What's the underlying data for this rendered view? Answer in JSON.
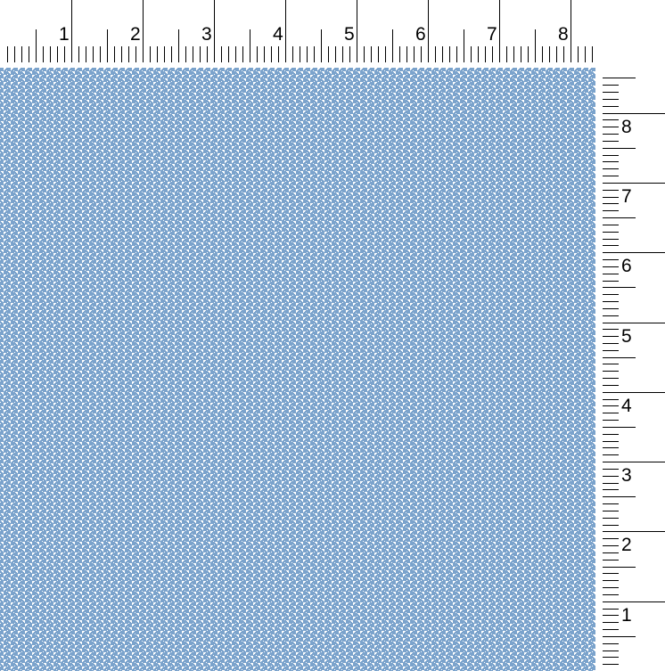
{
  "swatch": {
    "pattern": "houndstooth",
    "color": "#7ba3cc",
    "background": "#ffffff"
  },
  "top_ruler": {
    "labels": [
      "1",
      "2",
      "3",
      "4",
      "5",
      "6",
      "7",
      "8"
    ]
  },
  "right_ruler": {
    "labels": [
      "8",
      "7",
      "6",
      "5",
      "4",
      "3",
      "2",
      "1"
    ]
  }
}
